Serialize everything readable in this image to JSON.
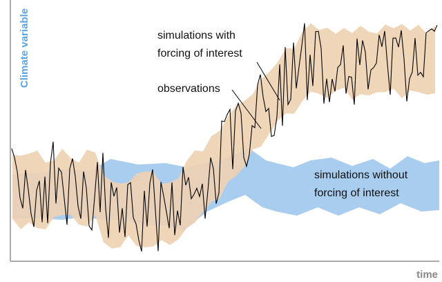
{
  "y_axis_label": "Climate variable",
  "x_axis_label": "time",
  "annotations": [
    {
      "lines": [
        "simulations with",
        "forcing of interest"
      ]
    },
    {
      "lines": [
        "observations"
      ]
    },
    {
      "lines": [
        "simulations without",
        "forcing of interest"
      ]
    }
  ]
}
